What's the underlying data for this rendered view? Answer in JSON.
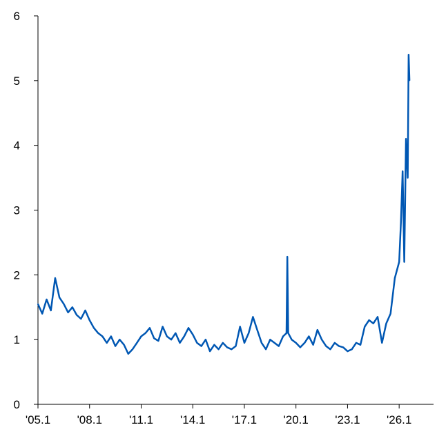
{
  "chart_data": {
    "type": "line",
    "title": "",
    "xlabel": "",
    "ylabel": "",
    "x_range": [
      2005.0,
      2028.0
    ],
    "ylim": [
      0,
      6
    ],
    "grid": false,
    "legend": "none",
    "y_ticks": [
      {
        "value": 0,
        "label": "0"
      },
      {
        "value": 1,
        "label": "1"
      },
      {
        "value": 2,
        "label": "2"
      },
      {
        "value": 3,
        "label": "3"
      },
      {
        "value": 4,
        "label": "4"
      },
      {
        "value": 5,
        "label": "5"
      },
      {
        "value": 6,
        "label": "6"
      }
    ],
    "x_ticks": [
      {
        "value": 2005.0,
        "label": "'05.1"
      },
      {
        "value": 2008.0,
        "label": "'08.1"
      },
      {
        "value": 2011.0,
        "label": "'11.1"
      },
      {
        "value": 2014.0,
        "label": "'14.1"
      },
      {
        "value": 2017.0,
        "label": "'17.1"
      },
      {
        "value": 2020.0,
        "label": "'20.1"
      },
      {
        "value": 2023.0,
        "label": "'23.1"
      },
      {
        "value": 2026.0,
        "label": "'26.1"
      }
    ],
    "series": [
      {
        "color": "#0057b3",
        "x": [
          2005.0,
          2005.25,
          2005.5,
          2005.75,
          2006.0,
          2006.25,
          2006.5,
          2006.75,
          2007.0,
          2007.25,
          2007.5,
          2007.75,
          2008.0,
          2008.25,
          2008.5,
          2008.75,
          2009.0,
          2009.25,
          2009.5,
          2009.75,
          2010.0,
          2010.25,
          2010.5,
          2010.75,
          2011.0,
          2011.25,
          2011.5,
          2011.75,
          2012.0,
          2012.25,
          2012.5,
          2012.75,
          2013.0,
          2013.25,
          2013.5,
          2013.75,
          2014.0,
          2014.25,
          2014.5,
          2014.75,
          2015.0,
          2015.25,
          2015.5,
          2015.75,
          2016.0,
          2016.25,
          2016.5,
          2016.75,
          2017.0,
          2017.25,
          2017.5,
          2017.75,
          2018.0,
          2018.25,
          2018.5,
          2018.75,
          2019.0,
          2019.25,
          2019.45,
          2019.5,
          2019.55,
          2019.75,
          2020.0,
          2020.25,
          2020.5,
          2020.75,
          2021.0,
          2021.25,
          2021.5,
          2021.75,
          2022.0,
          2022.25,
          2022.5,
          2022.75,
          2023.0,
          2023.25,
          2023.5,
          2023.75,
          2024.0,
          2024.25,
          2024.5,
          2024.75,
          2025.0,
          2025.25,
          2025.5,
          2025.75,
          2026.0,
          2026.1,
          2026.2,
          2026.3,
          2026.4,
          2026.5,
          2026.55,
          2026.6
        ],
        "values": [
          1.55,
          1.4,
          1.62,
          1.45,
          1.95,
          1.65,
          1.55,
          1.42,
          1.5,
          1.38,
          1.32,
          1.45,
          1.3,
          1.18,
          1.1,
          1.05,
          0.95,
          1.05,
          0.9,
          1.0,
          0.92,
          0.78,
          0.85,
          0.95,
          1.05,
          1.1,
          1.18,
          1.02,
          0.98,
          1.2,
          1.05,
          1.0,
          1.1,
          0.95,
          1.05,
          1.18,
          1.08,
          0.95,
          0.9,
          1.0,
          0.82,
          0.92,
          0.85,
          0.95,
          0.88,
          0.85,
          0.9,
          1.2,
          0.95,
          1.1,
          1.35,
          1.15,
          0.95,
          0.85,
          1.0,
          0.95,
          0.9,
          1.05,
          1.1,
          2.28,
          1.1,
          1.0,
          0.95,
          0.88,
          0.95,
          1.05,
          0.92,
          1.15,
          1.0,
          0.9,
          0.85,
          0.95,
          0.9,
          0.88,
          0.82,
          0.85,
          0.95,
          0.92,
          1.2,
          1.3,
          1.25,
          1.35,
          0.95,
          1.25,
          1.4,
          1.95,
          2.2,
          2.8,
          3.6,
          2.2,
          4.1,
          3.5,
          5.4,
          5.0
        ]
      }
    ]
  }
}
